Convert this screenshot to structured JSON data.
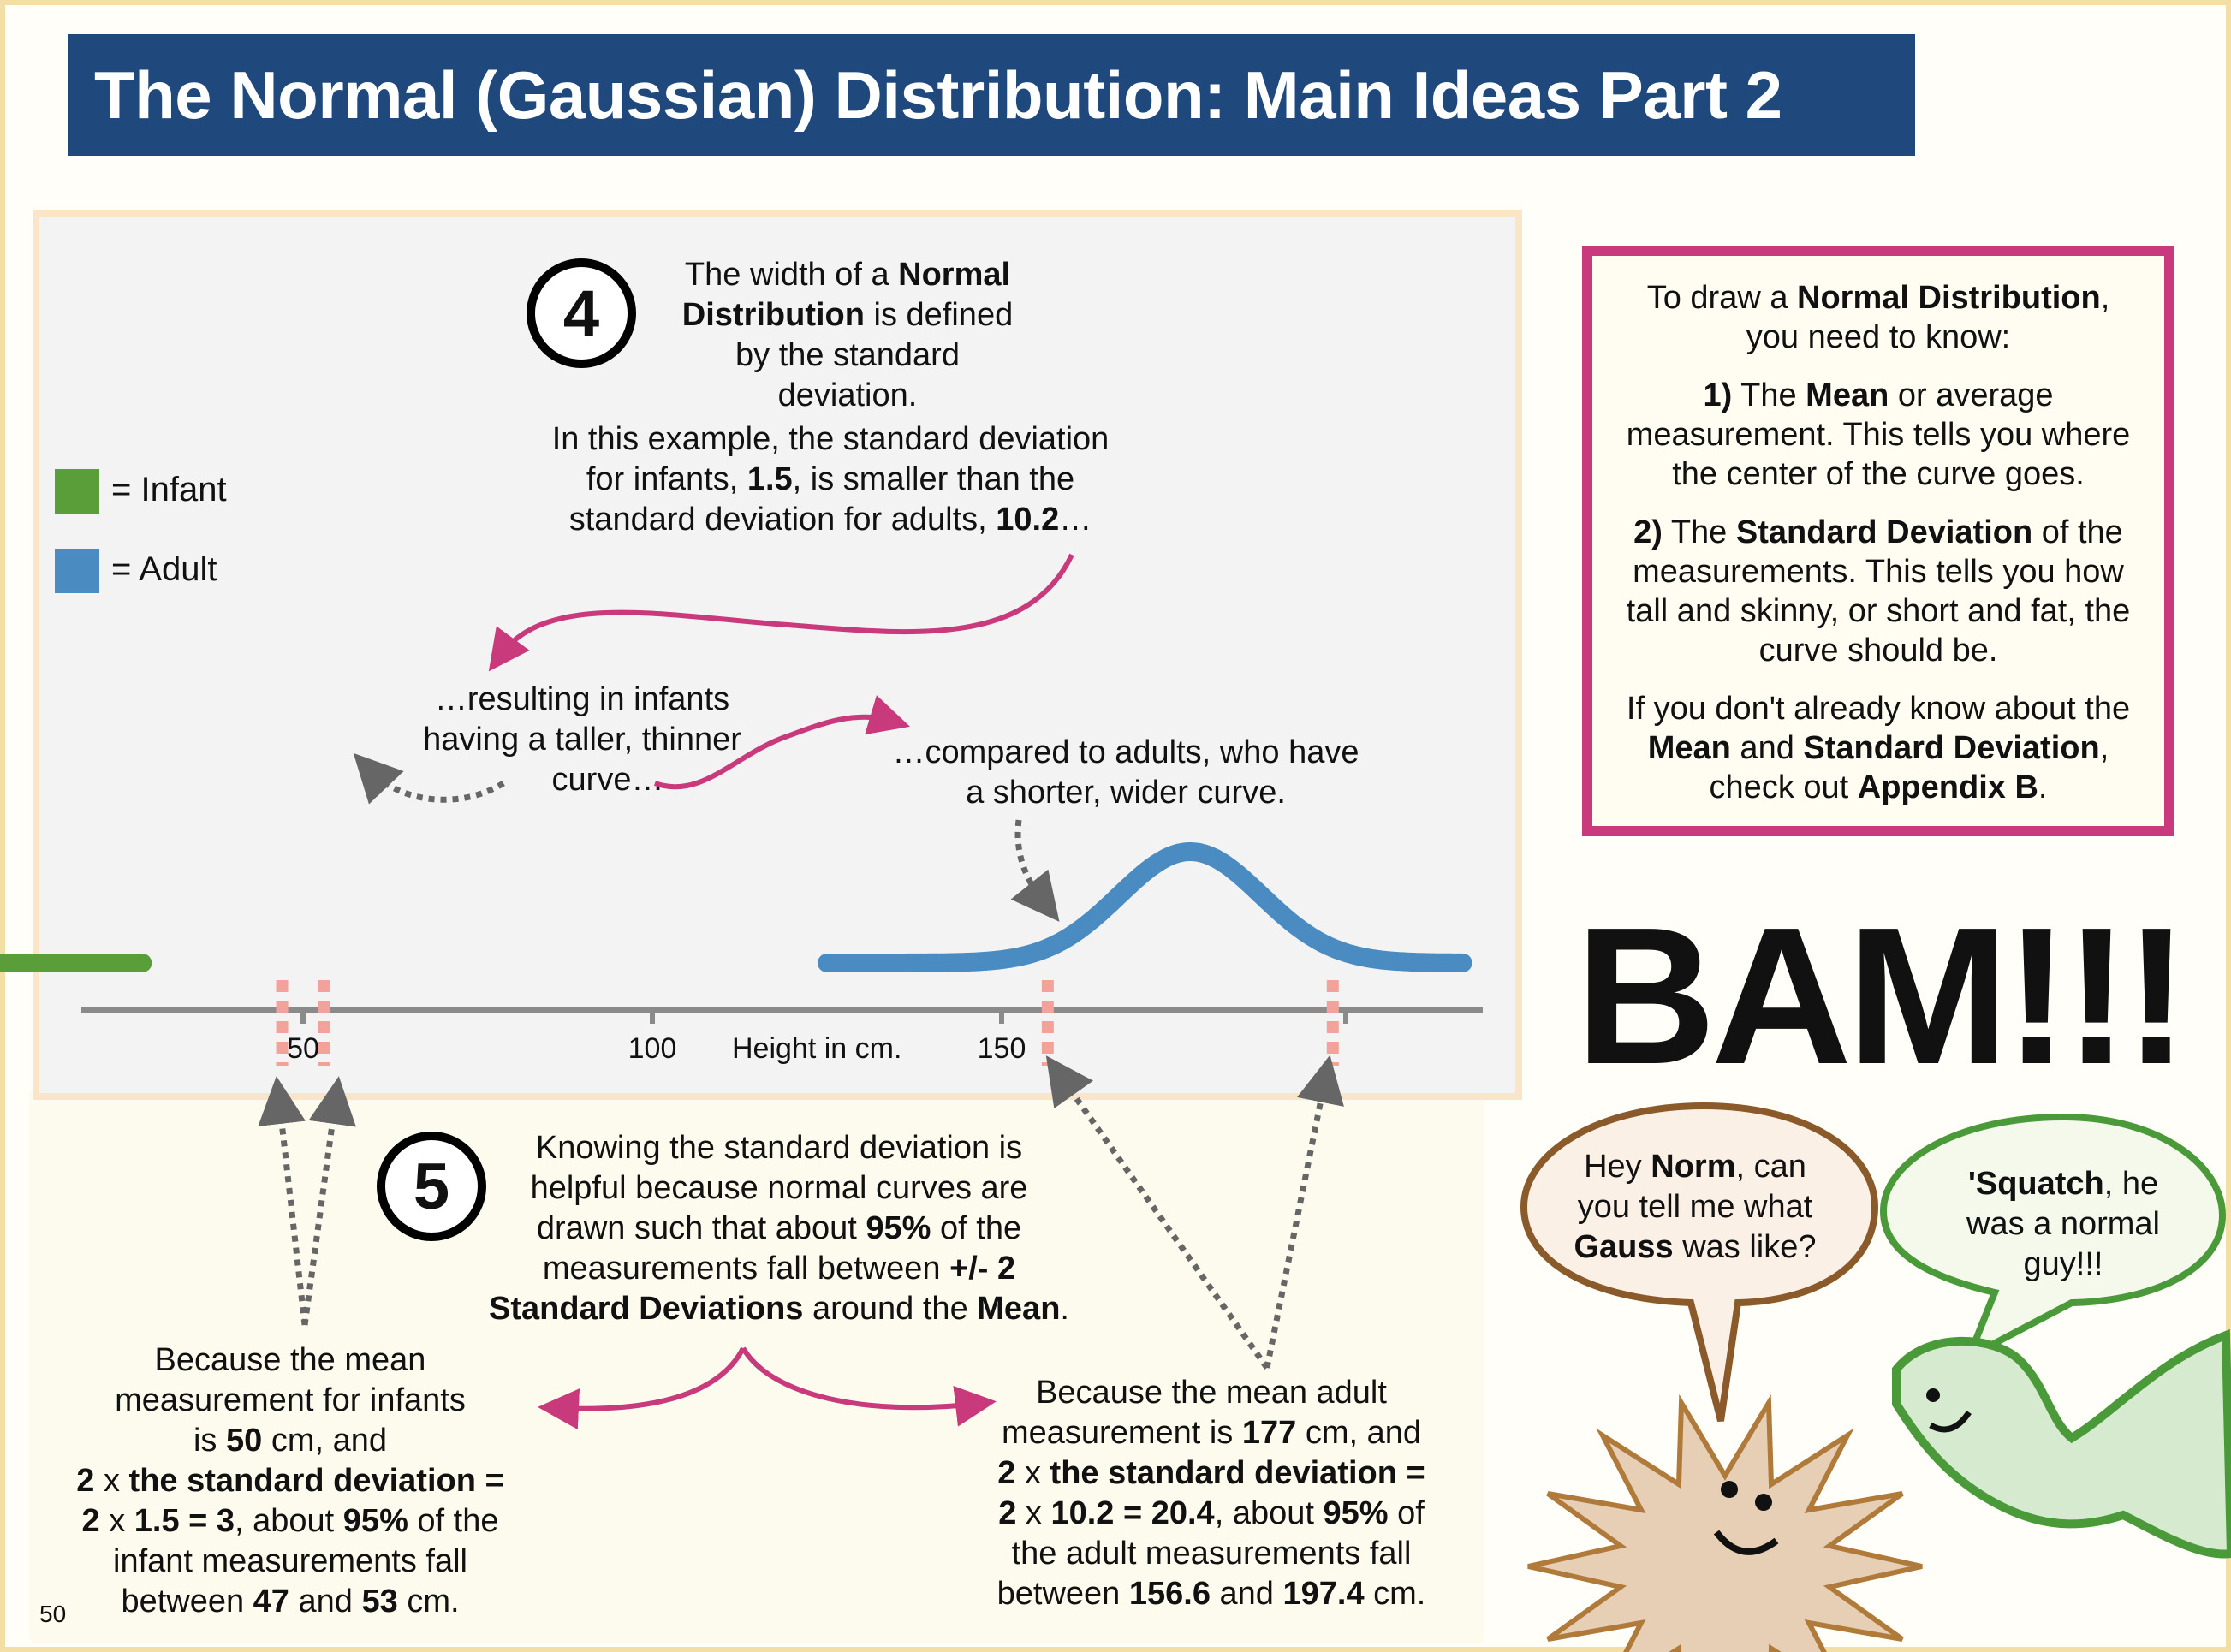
{
  "header": {
    "title": "The Normal (Gaussian) Distribution: Main Ideas Part 2"
  },
  "legend": [
    {
      "label": "= Infant",
      "color": "#5a9e3a"
    },
    {
      "label": "= Adult",
      "color": "#4a8cc2"
    }
  ],
  "step4": {
    "number": "4",
    "lines": [
      [
        [
          "The width of a ",
          false
        ],
        [
          "Normal",
          true
        ]
      ],
      [
        [
          "Distribution",
          true
        ],
        [
          " is defined",
          false
        ]
      ],
      [
        [
          "by the standard",
          false
        ]
      ],
      [
        [
          "deviation.",
          false
        ]
      ]
    ],
    "example_lines": [
      [
        [
          "In this example, the standard deviation",
          false
        ]
      ],
      [
        [
          "for infants, ",
          false
        ],
        [
          "1.5",
          true
        ],
        [
          ", is smaller than the",
          false
        ]
      ],
      [
        [
          "standard deviation for adults, ",
          false
        ],
        [
          "10.2",
          true
        ],
        [
          "…",
          false
        ]
      ]
    ]
  },
  "callout_infant": [
    "…resulting in infants",
    "having a taller, thinner",
    "curve…"
  ],
  "callout_adult": [
    "…compared to adults, who have",
    "a shorter, wider curve."
  ],
  "info_box": {
    "paragraphs": [
      [
        [
          "To draw a ",
          false
        ],
        [
          "Normal Distribution",
          true
        ],
        [
          ",",
          false
        ],
        [
          "\n",
          false
        ],
        [
          "you need to know:",
          false
        ]
      ],
      [
        [
          "1)",
          true
        ],
        [
          " The ",
          false
        ],
        [
          "Mean",
          true
        ],
        [
          " or average measurement. This tells you where the center of the curve goes.",
          false
        ]
      ],
      [
        [
          "2)",
          true
        ],
        [
          " The ",
          false
        ],
        [
          "Standard Deviation",
          true
        ],
        [
          " of the measurements. This tells you how tall and skinny, or short and fat, the curve should be.",
          false
        ]
      ],
      [
        [
          "If you don't already know about the ",
          false
        ],
        [
          "Mean",
          true
        ],
        [
          " and ",
          false
        ],
        [
          "Standard Deviation",
          true
        ],
        [
          ", check out ",
          false
        ],
        [
          "Appendix B",
          true
        ],
        [
          ".",
          false
        ]
      ]
    ]
  },
  "bam": "BAM!!!",
  "step5": {
    "number": "5",
    "lines": [
      [
        [
          "Knowing the standard deviation is",
          false
        ]
      ],
      [
        [
          "helpful because normal curves are",
          false
        ]
      ],
      [
        [
          "drawn such that about ",
          false
        ],
        [
          "95%",
          true
        ],
        [
          " of the",
          false
        ]
      ],
      [
        [
          "measurements fall between ",
          false
        ],
        [
          "+/- 2",
          true
        ]
      ],
      [
        [
          "Standard Deviations",
          true
        ],
        [
          " around the ",
          false
        ],
        [
          "Mean",
          true
        ],
        [
          ".",
          false
        ]
      ]
    ]
  },
  "infant_explanation": [
    [
      [
        "Because the mean",
        false
      ]
    ],
    [
      [
        "measurement for infants",
        false
      ]
    ],
    [
      [
        "is ",
        false
      ],
      [
        "50",
        true
      ],
      [
        " cm, and",
        false
      ]
    ],
    [
      [
        "2 ",
        true
      ],
      [
        "x",
        false
      ],
      [
        " the standard deviation =",
        true
      ]
    ],
    [
      [
        "2",
        true
      ],
      [
        " x ",
        false
      ],
      [
        "1.5 = 3",
        true
      ],
      [
        ", about ",
        false
      ],
      [
        "95%",
        true
      ],
      [
        " of the",
        false
      ]
    ],
    [
      [
        "infant measurements fall",
        false
      ]
    ],
    [
      [
        "between ",
        false
      ],
      [
        "47",
        true
      ],
      [
        " and ",
        false
      ],
      [
        "53",
        true
      ],
      [
        " cm.",
        false
      ]
    ]
  ],
  "adult_explanation": [
    [
      [
        "Because the mean adult",
        false
      ]
    ],
    [
      [
        "measurement is ",
        false
      ],
      [
        "177",
        true
      ],
      [
        " cm, and",
        false
      ]
    ],
    [
      [
        "2 ",
        true
      ],
      [
        "x",
        false
      ],
      [
        " the standard deviation =",
        true
      ]
    ],
    [
      [
        "2",
        true
      ],
      [
        " x ",
        false
      ],
      [
        "10.2 = 20.4",
        true
      ],
      [
        ", about ",
        false
      ],
      [
        "95%",
        true
      ],
      [
        " of",
        false
      ]
    ],
    [
      [
        "the adult measurements fall",
        false
      ]
    ],
    [
      [
        "between ",
        false
      ],
      [
        "156.6",
        true
      ],
      [
        " and ",
        false
      ],
      [
        "197.4",
        true
      ],
      [
        " cm.",
        false
      ]
    ]
  ],
  "bubble_left": [
    [
      [
        "Hey ",
        false
      ],
      [
        "Norm",
        true
      ],
      [
        ", can",
        false
      ]
    ],
    [
      [
        "you tell me what",
        false
      ]
    ],
    [
      [
        "Gauss",
        true
      ],
      [
        " was like?",
        false
      ]
    ]
  ],
  "bubble_right": [
    [
      [
        "'Squatch",
        true
      ],
      [
        ", he",
        false
      ]
    ],
    [
      [
        "was a normal",
        false
      ]
    ],
    [
      [
        "guy!!!",
        false
      ]
    ]
  ],
  "page_number": "50",
  "chart_data": {
    "type": "line",
    "xlabel": "Height in cm.",
    "xlim": [
      -5,
      215
    ],
    "x_ticks": [
      50,
      100,
      150
    ],
    "series": [
      {
        "name": "Infant",
        "color": "#5a9e3a",
        "mean": 50,
        "sd": 1.5,
        "x_range": [
          -4,
          27
        ]
      },
      {
        "name": "Adult",
        "color": "#4a8cc2",
        "mean": 177,
        "sd": 10.2,
        "x_range": [
          125,
          216
        ]
      }
    ],
    "interval_markers": [
      {
        "series": "Infant",
        "x": [
          47,
          53
        ],
        "color": "#f2a29a"
      },
      {
        "series": "Adult",
        "x": [
          156.6,
          197.4
        ],
        "color": "#f2a29a"
      }
    ],
    "grid": false
  }
}
